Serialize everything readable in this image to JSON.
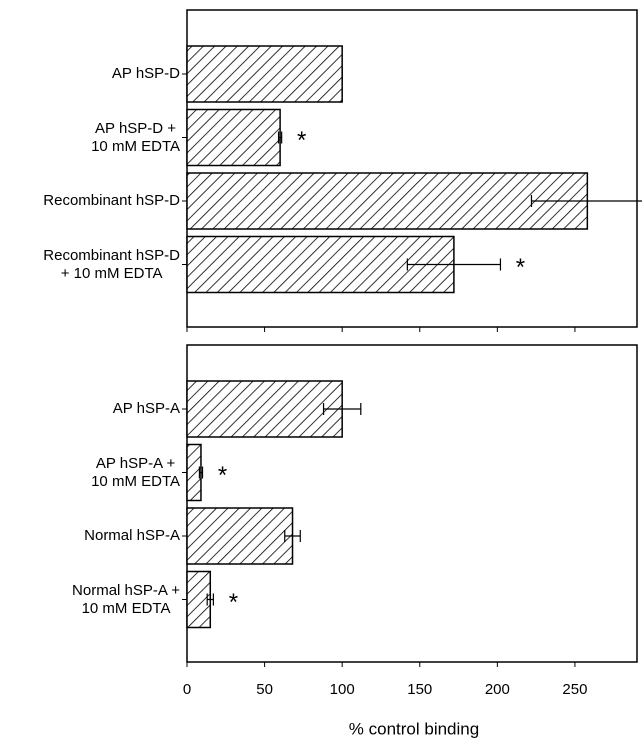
{
  "chart_data": [
    {
      "type": "hbar",
      "color": "#000000",
      "categories": [
        "AP hSP-D",
        "AP hSP-D +\n10 mM EDTA",
        "Recombinant hSP-D",
        "Recombinant hSP-D\n+ 10 mM EDTA"
      ],
      "values": [
        100,
        60,
        258,
        172
      ],
      "errors": [
        0,
        1,
        36,
        30
      ],
      "value_annotations": [
        null,
        "*",
        null,
        "*"
      ],
      "xlim": [
        0,
        290
      ]
    },
    {
      "type": "hbar",
      "color": "#000000",
      "categories": [
        "AP hSP-A",
        "AP hSP-A +\n10 mM EDTA",
        "Normal hSP-A",
        "Normal hSP-A +\n10 mM EDTA"
      ],
      "values": [
        100,
        9,
        68,
        15
      ],
      "errors": [
        12,
        1,
        5,
        2
      ],
      "value_annotations": [
        null,
        "*",
        null,
        "*"
      ],
      "xlim": [
        0,
        290
      ],
      "xticks": [
        0,
        50,
        100,
        150,
        200,
        250
      ],
      "xlabel": "% control binding"
    }
  ]
}
